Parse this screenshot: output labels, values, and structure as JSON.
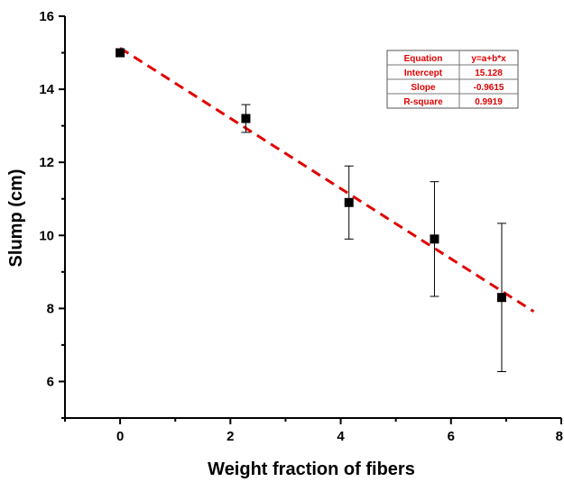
{
  "chart_data": {
    "type": "scatter",
    "xlabel": "Weight fraction of fibers",
    "ylabel": "Slump (cm)",
    "xlim": [
      -1,
      8
    ],
    "ylim": [
      5,
      16
    ],
    "x_ticks": [
      0,
      2,
      4,
      6,
      8
    ],
    "y_ticks": [
      6,
      8,
      10,
      12,
      14,
      16
    ],
    "grid": false,
    "points": [
      {
        "x": 0,
        "y": 15.0,
        "err": 0.0
      },
      {
        "x": 2.28,
        "y": 13.2,
        "err": 0.38
      },
      {
        "x": 4.15,
        "y": 10.9,
        "err": 1.0
      },
      {
        "x": 5.7,
        "y": 9.9,
        "err": 1.57
      },
      {
        "x": 6.92,
        "y": 8.3,
        "err": 2.03
      }
    ],
    "fit_line": {
      "intercept": 15.128,
      "slope": -0.9615,
      "x_range": [
        0,
        7.5
      ],
      "color": "#e00000",
      "style": "dashed"
    },
    "marker_color": "#000000",
    "fit_table": {
      "rows": [
        {
          "label": "Equation",
          "value": "y=a+b*x"
        },
        {
          "label": "Intercept",
          "value": "15.128"
        },
        {
          "label": "Slope",
          "value": "-0.9615"
        },
        {
          "label": "R-square",
          "value": "0.9919"
        }
      ],
      "color": "#e00000"
    }
  }
}
